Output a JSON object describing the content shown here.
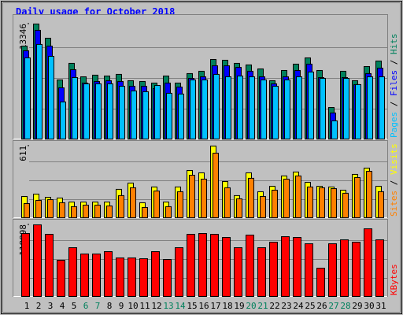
{
  "chart_data": [
    {
      "type": "bar",
      "title": "Daily usage for October 2018",
      "legend_separator": " / ",
      "ylim": [
        0,
        14160
      ],
      "yticks": [
        13346
      ],
      "grid": true,
      "series": [
        {
          "name": "Hits",
          "color": "#00805c",
          "values": [
            10800,
            13346,
            11710,
            6900,
            8810,
            7260,
            7450,
            7350,
            7540,
            6810,
            6720,
            6540,
            7350,
            6540,
            7630,
            7900,
            9260,
            9170,
            8810,
            8630,
            8170,
            6810,
            7990,
            8720,
            9440,
            7990,
            3720,
            7900,
            6810,
            8440,
            9080
          ]
        },
        {
          "name": "Files",
          "color": "#0000ff",
          "values": [
            10260,
            12620,
            10800,
            5990,
            8080,
            6540,
            6720,
            6810,
            6720,
            6170,
            6170,
            5900,
            6540,
            6080,
            7080,
            7260,
            8530,
            8530,
            8350,
            7900,
            7260,
            6450,
            7260,
            7990,
            8720,
            7170,
            3090,
            7170,
            6360,
            7630,
            8260
          ]
        },
        {
          "name": "Pages",
          "color": "#00c0ff",
          "values": [
            9440,
            10990,
            9620,
            4360,
            7170,
            6450,
            6450,
            6450,
            6170,
            5630,
            5540,
            6260,
            5360,
            5270,
            6900,
            6900,
            7540,
            7260,
            7350,
            7260,
            6900,
            6170,
            6900,
            7260,
            7810,
            7080,
            2180,
            7080,
            6360,
            7260,
            7260
          ]
        }
      ]
    },
    {
      "type": "bar",
      "ylim": [
        0,
        637
      ],
      "yticks": [
        611
      ],
      "grid": true,
      "series": [
        {
          "name": "Visits",
          "color": "#ffff00",
          "values": [
            186,
            206,
            179,
            173,
            139,
            139,
            139,
            139,
            246,
            299,
            133,
            266,
            139,
            266,
            405,
            385,
            611,
            312,
            193,
            385,
            226,
            272,
            359,
            392,
            305,
            272,
            266,
            239,
            372,
            425,
            272
          ]
        },
        {
          "name": "Sites",
          "color": "#ff8000",
          "values": [
            126,
            153,
            159,
            133,
            100,
            113,
            113,
            106,
            193,
            259,
            93,
            232,
            100,
            226,
            365,
            332,
            551,
            259,
            166,
            339,
            186,
            239,
            332,
            359,
            266,
            259,
            252,
            213,
            345,
            398,
            226
          ]
        }
      ]
    },
    {
      "type": "bar",
      "ylim": [
        0,
        124070
      ],
      "yticks": [
        118898
      ],
      "grid": true,
      "categories": [
        "1",
        "2",
        "3",
        "4",
        "5",
        "6",
        "7",
        "8",
        "9",
        "10",
        "11",
        "12",
        "13",
        "14",
        "15",
        "16",
        "17",
        "18",
        "19",
        "20",
        "21",
        "22",
        "23",
        "24",
        "25",
        "26",
        "27",
        "28",
        "29",
        "30",
        "31"
      ],
      "category_colors": [
        "#000000",
        "#000000",
        "#000000",
        "#000000",
        "#000000",
        "#00805c",
        "#00805c",
        "#000000",
        "#000000",
        "#000000",
        "#000000",
        "#000000",
        "#00805c",
        "#00805c",
        "#000000",
        "#000000",
        "#000000",
        "#000000",
        "#000000",
        "#00805c",
        "#00805c",
        "#000000",
        "#000000",
        "#000000",
        "#000000",
        "#000000",
        "#00805c",
        "#00805c",
        "#000000",
        "#000000",
        "#000000"
      ],
      "series": [
        {
          "name": "KBytes",
          "color": "#ff0000",
          "values": [
            104650,
            118898,
            103360,
            60720,
            81400,
            71060,
            71060,
            74940,
            64600,
            64600,
            63310,
            74940,
            62020,
            81400,
            103360,
            104650,
            103360,
            98190,
            81400,
            102070,
            81400,
            90440,
            99480,
            98190,
            87860,
            47800,
            87860,
            94320,
            90440,
            112400,
            94320
          ]
        }
      ]
    }
  ]
}
